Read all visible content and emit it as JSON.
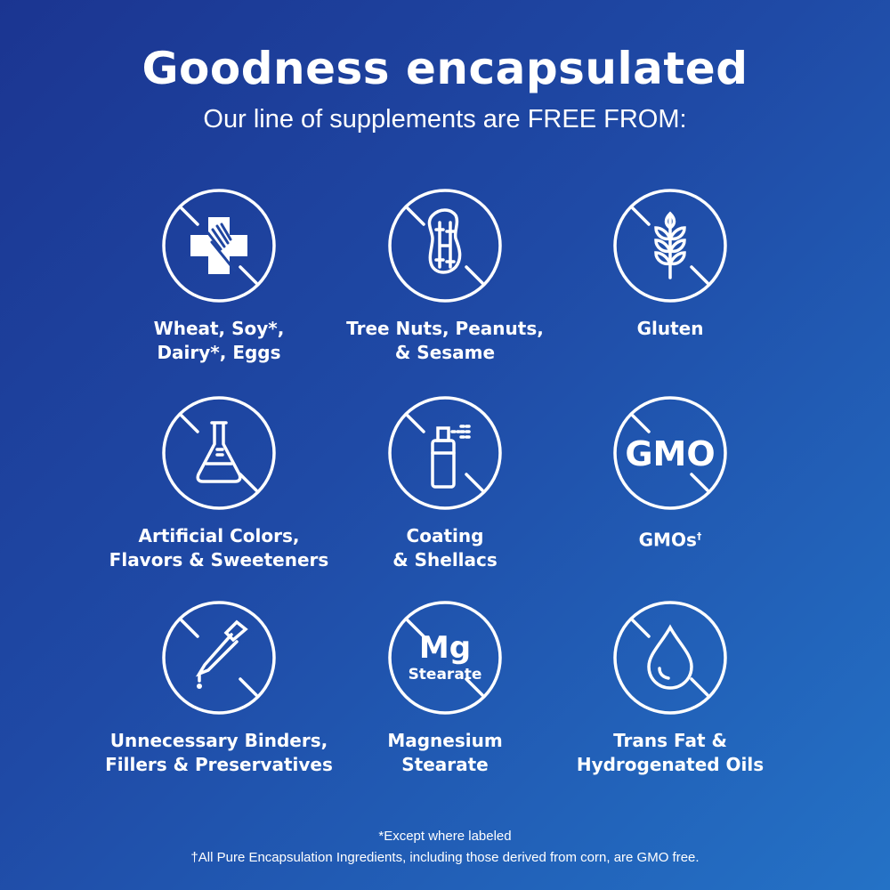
{
  "header": {
    "title": "Goodness encapsulated",
    "subtitle": "Our line of supplements are FREE FROM:"
  },
  "items": [
    {
      "icon": "allergen-cross-fork-icon",
      "label": "Wheat, Soy*,\nDairy*, Eggs"
    },
    {
      "icon": "peanut-icon",
      "label": "Tree Nuts, Peanuts,\n& Sesame"
    },
    {
      "icon": "wheat-icon",
      "label": "Gluten"
    },
    {
      "icon": "flask-icon",
      "label": "Artificial Colors,\nFlavors & Sweeteners"
    },
    {
      "icon": "spray-can-icon",
      "label": "Coating\n& Shellacs"
    },
    {
      "icon": "gmo-text-icon",
      "label": "GMOs",
      "sup": "†",
      "icon_text": "GMO"
    },
    {
      "icon": "dropper-icon",
      "label": "Unnecessary Binders,\nFillers & Preservatives"
    },
    {
      "icon": "mg-stearate-icon",
      "label": "Magnesium\nStearate",
      "icon_text": "Mg",
      "icon_subtext": "Stearate"
    },
    {
      "icon": "oil-drop-icon",
      "label": "Trans Fat &\nHydrogenated Oils"
    }
  ],
  "footnotes": [
    "*Except where labeled",
    "†All Pure Encapsulation Ingredients, including those derived from corn, are GMO free."
  ],
  "colors": {
    "gradient_start": "#1b3591",
    "gradient_end": "#2472c6",
    "foreground": "#ffffff"
  }
}
